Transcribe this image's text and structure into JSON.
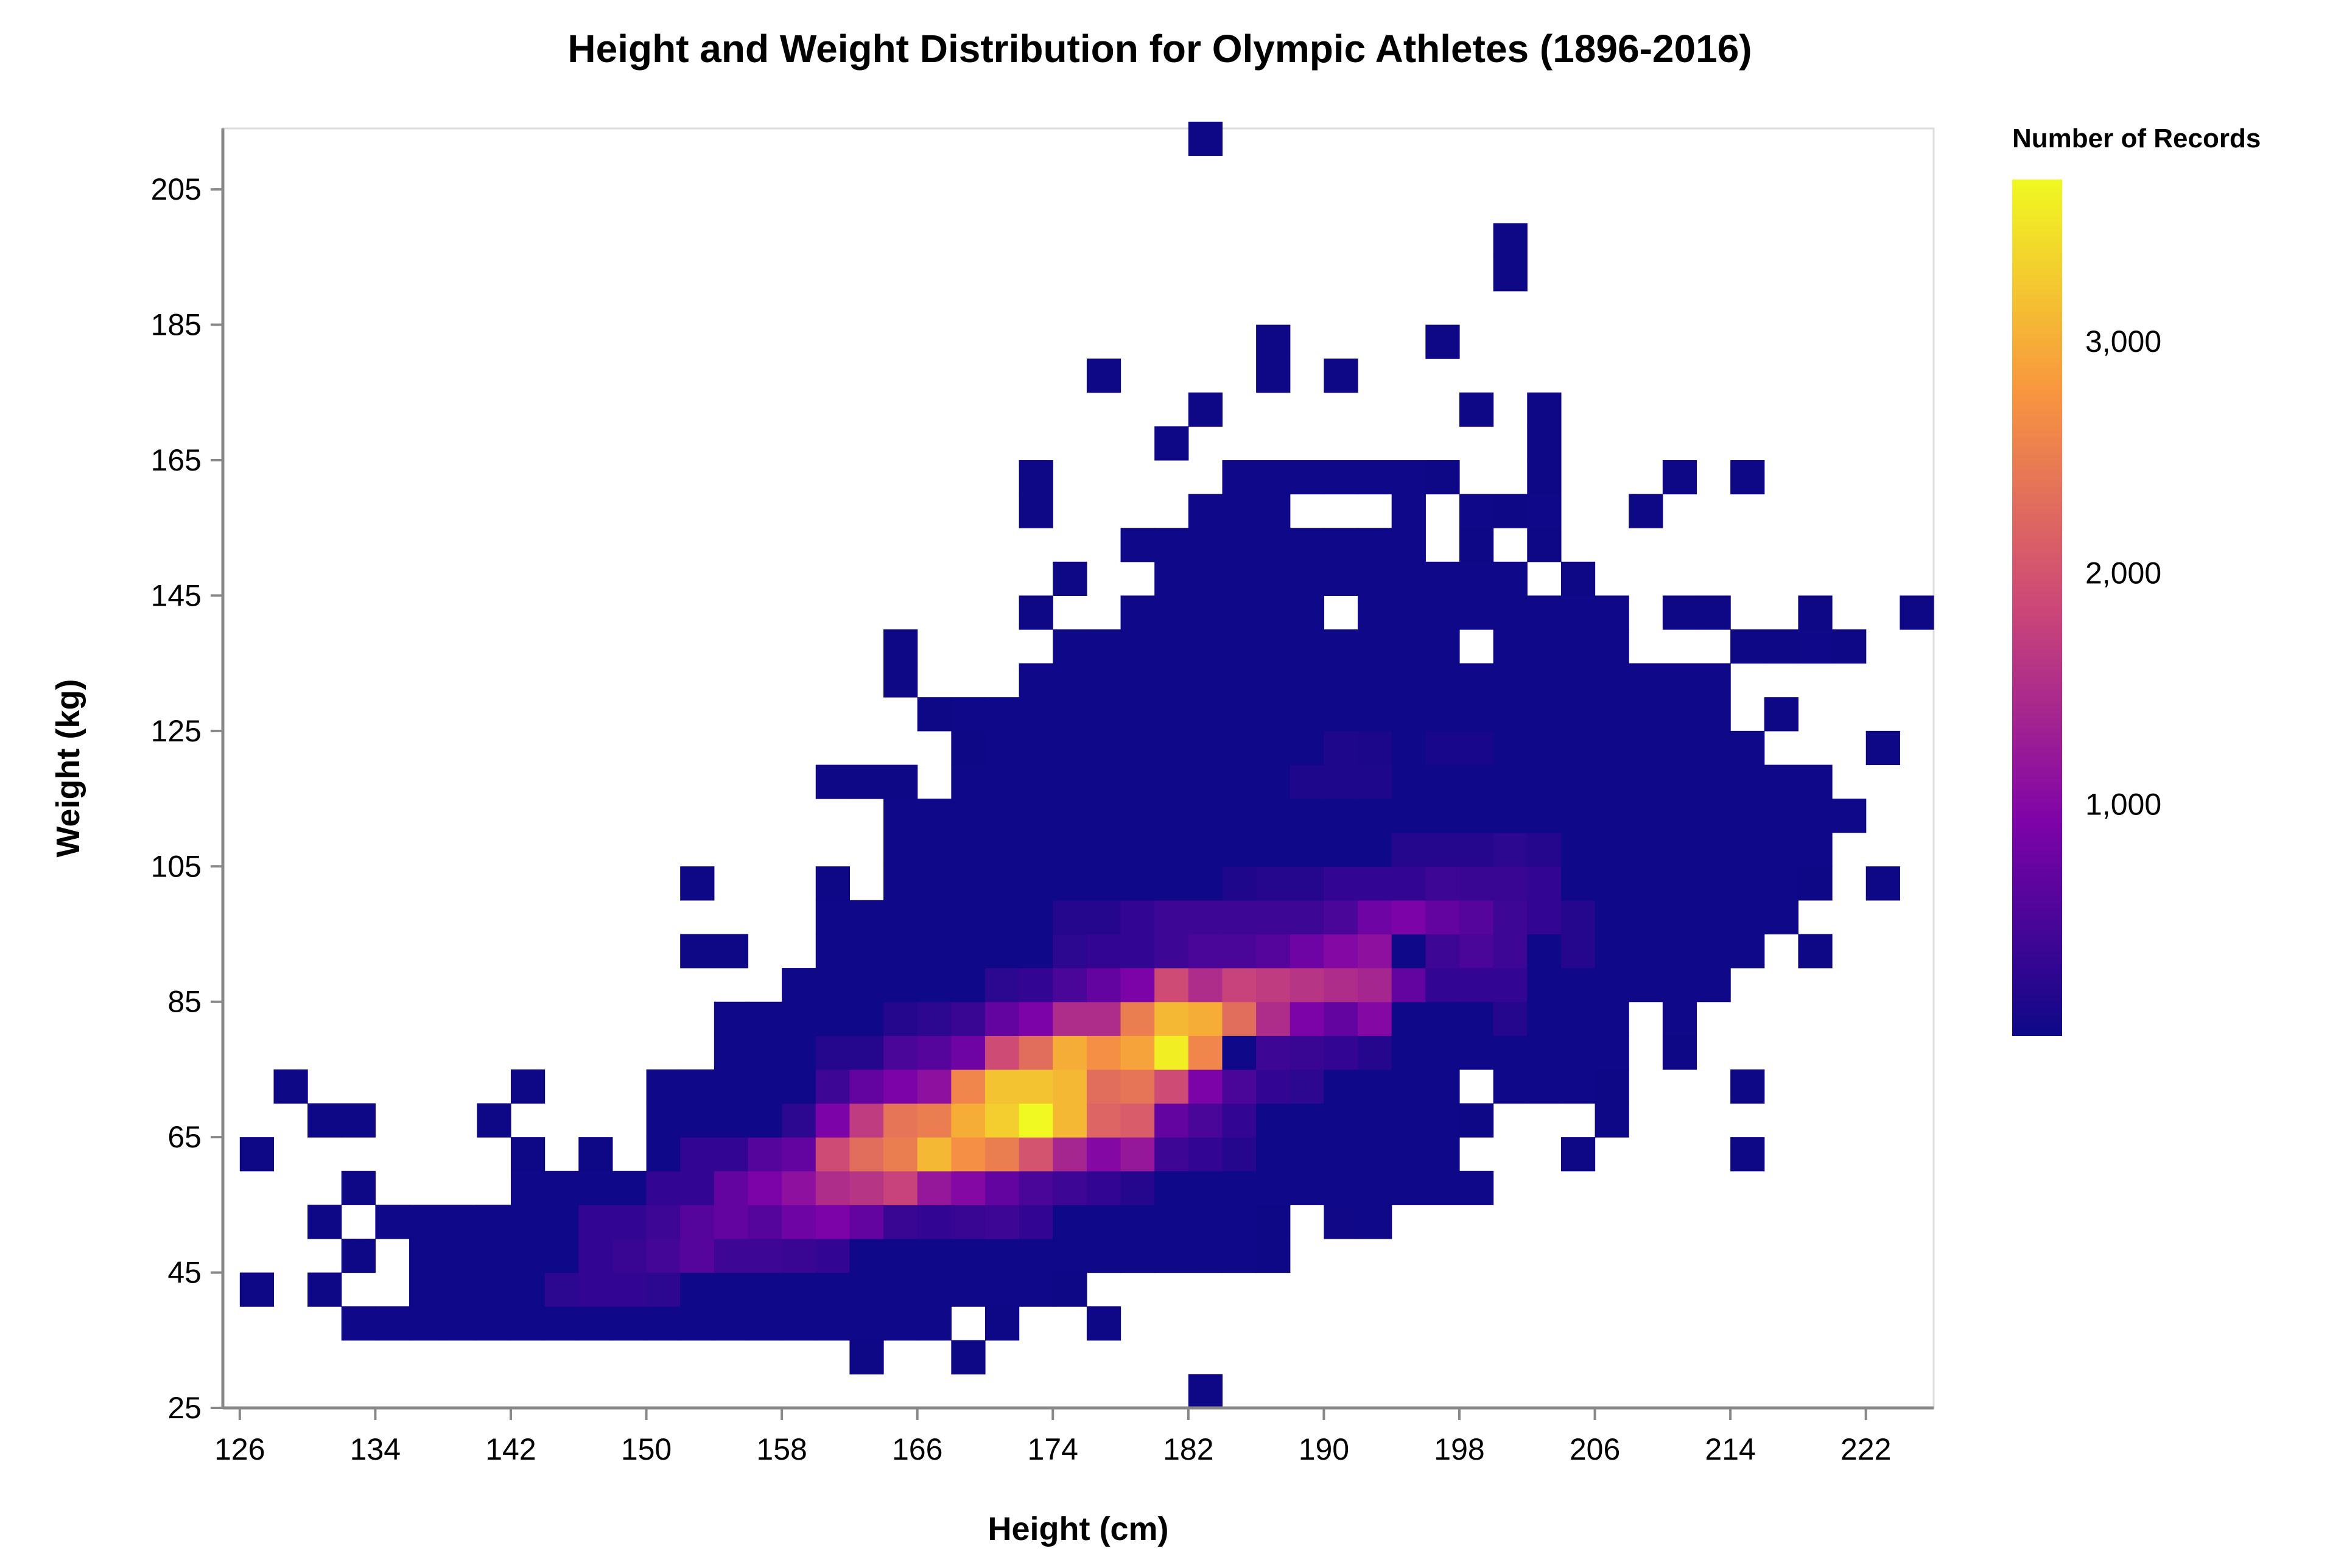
{
  "chart_data": {
    "type": "heatmap",
    "title": "Height and Weight Distribution for Olympic Athletes (1896-2016)",
    "xlabel": "Height (cm)",
    "ylabel": "Weight (kg)",
    "xlim": [
      125,
      226
    ],
    "ylim": [
      25,
      214
    ],
    "xbin": 2,
    "ybin": 5,
    "xticks": [
      126,
      134,
      142,
      150,
      158,
      166,
      174,
      182,
      190,
      198,
      206,
      214,
      222
    ],
    "xtick_labels": [
      "126",
      "134",
      "142",
      "150",
      "158",
      "166",
      "174",
      "182",
      "190",
      "198",
      "206",
      "214",
      "222"
    ],
    "yticks": [
      25,
      45,
      65,
      85,
      105,
      125,
      145,
      165,
      185,
      205
    ],
    "ytick_labels": [
      "25",
      "45",
      "65",
      "85",
      "105",
      "125",
      "145",
      "165",
      "185",
      "205"
    ],
    "legend": {
      "title": "Number of Records",
      "min": 0,
      "max": 3700,
      "ticks": [
        1000,
        2000,
        3000
      ],
      "tick_labels": [
        "1,000",
        "2,000",
        "3,000"
      ],
      "placement": "right",
      "colors": [
        "#0d0887",
        "#7e03a8",
        "#cc4778",
        "#f89540",
        "#f0f921"
      ]
    },
    "cells": [
      [
        182,
        210,
        5
      ],
      [
        200,
        195,
        5
      ],
      [
        200,
        190,
        5
      ],
      [
        196,
        180,
        5
      ],
      [
        186,
        180,
        5
      ],
      [
        186,
        175,
        5
      ],
      [
        190,
        175,
        5
      ],
      [
        176,
        175,
        5
      ],
      [
        182,
        170,
        5
      ],
      [
        198,
        170,
        5
      ],
      [
        202,
        170,
        5
      ],
      [
        202,
        165,
        5
      ],
      [
        180,
        165,
        5
      ],
      [
        172,
        160,
        5
      ],
      [
        172,
        155,
        5
      ],
      [
        196,
        160,
        5
      ],
      [
        202,
        160,
        5
      ],
      [
        210,
        160,
        5
      ],
      [
        214,
        160,
        5
      ],
      [
        208,
        155,
        5
      ],
      [
        200,
        155,
        5
      ],
      [
        198,
        150,
        5
      ],
      [
        202,
        150,
        5
      ],
      [
        174,
        145,
        5
      ],
      [
        204,
        145,
        5
      ],
      [
        172,
        140,
        5
      ],
      [
        210,
        140,
        5
      ],
      [
        212,
        140,
        5
      ],
      [
        218,
        140,
        5
      ],
      [
        224,
        140,
        5
      ],
      [
        220,
        135,
        5
      ],
      [
        214,
        135,
        5
      ],
      [
        216,
        135,
        5
      ],
      [
        164,
        135,
        5
      ],
      [
        164,
        130,
        5
      ],
      [
        166,
        125,
        5
      ],
      [
        216,
        125,
        5
      ],
      [
        168,
        120,
        5
      ],
      [
        222,
        120,
        5
      ],
      [
        160,
        115,
        5
      ],
      [
        162,
        115,
        5
      ],
      [
        164,
        115,
        5
      ],
      [
        152,
        100,
        5
      ],
      [
        160,
        100,
        5
      ],
      [
        218,
        100,
        5
      ],
      [
        222,
        100,
        5
      ],
      [
        218,
        90,
        5
      ],
      [
        152,
        90,
        5
      ],
      [
        154,
        90,
        5
      ],
      [
        210,
        75,
        5
      ],
      [
        214,
        70,
        5
      ],
      [
        206,
        70,
        5
      ],
      [
        206,
        65,
        5
      ],
      [
        198,
        65,
        5
      ],
      [
        204,
        60,
        5
      ],
      [
        214,
        60,
        5
      ],
      [
        128,
        70,
        5
      ],
      [
        142,
        70,
        5
      ],
      [
        130,
        65,
        5
      ],
      [
        132,
        65,
        5
      ],
      [
        140,
        65,
        5
      ],
      [
        126,
        60,
        5
      ],
      [
        142,
        60,
        5
      ],
      [
        146,
        60,
        5
      ],
      [
        132,
        55,
        5
      ],
      [
        130,
        50,
        5
      ],
      [
        132,
        45,
        5
      ],
      [
        126,
        40,
        5
      ],
      [
        130,
        40,
        5
      ],
      [
        182,
        25,
        5
      ],
      [
        162,
        30,
        5
      ],
      [
        168,
        30,
        5
      ],
      [
        170,
        35,
        5
      ],
      [
        176,
        35,
        5
      ],
      [
        174,
        40,
        5
      ],
      [
        186,
        45,
        5
      ],
      [
        186,
        50,
        5
      ],
      [
        190,
        50,
        30
      ],
      [
        192,
        50,
        20
      ],
      [
        172,
        65,
        3700
      ],
      [
        170,
        65,
        3300
      ],
      [
        174,
        65,
        3100
      ],
      [
        170,
        70,
        3200
      ],
      [
        172,
        70,
        3200
      ],
      [
        174,
        70,
        3100
      ],
      [
        174,
        75,
        3000
      ],
      [
        176,
        75,
        2700
      ],
      [
        178,
        75,
        2900
      ],
      [
        180,
        75,
        3600
      ],
      [
        182,
        75,
        2600
      ],
      [
        180,
        80,
        3100
      ],
      [
        182,
        80,
        3000
      ],
      [
        178,
        80,
        2500
      ],
      [
        184,
        80,
        2300
      ],
      [
        168,
        60,
        2700
      ],
      [
        168,
        65,
        3000
      ],
      [
        166,
        60,
        3100
      ],
      [
        164,
        60,
        2500
      ],
      [
        166,
        65,
        2500
      ],
      [
        164,
        65,
        2400
      ],
      [
        168,
        70,
        2600
      ],
      [
        170,
        60,
        2500
      ],
      [
        172,
        60,
        2000
      ],
      [
        174,
        60,
        1400
      ],
      [
        176,
        65,
        2200
      ],
      [
        178,
        65,
        2100
      ],
      [
        176,
        70,
        2300
      ],
      [
        178,
        70,
        2400
      ],
      [
        180,
        70,
        1900
      ],
      [
        172,
        75,
        2300
      ],
      [
        170,
        75,
        1900
      ],
      [
        166,
        70,
        1100
      ],
      [
        164,
        70,
        900
      ],
      [
        162,
        65,
        1700
      ],
      [
        162,
        60,
        2300
      ],
      [
        160,
        60,
        1900
      ],
      [
        160,
        55,
        1500
      ],
      [
        162,
        55,
        1600
      ],
      [
        164,
        55,
        1800
      ],
      [
        158,
        55,
        1100
      ],
      [
        180,
        65,
        700
      ],
      [
        182,
        70,
        900
      ],
      [
        176,
        80,
        1500
      ],
      [
        174,
        80,
        1500
      ],
      [
        182,
        85,
        1500
      ],
      [
        180,
        85,
        1900
      ],
      [
        184,
        85,
        1800
      ],
      [
        186,
        85,
        1700
      ],
      [
        188,
        85,
        1600
      ],
      [
        190,
        85,
        1500
      ],
      [
        186,
        80,
        1500
      ],
      [
        188,
        80,
        900
      ],
      [
        190,
        80,
        700
      ],
      [
        192,
        80,
        1000
      ],
      [
        192,
        85,
        1400
      ],
      [
        192,
        90,
        1100
      ],
      [
        190,
        90,
        1000
      ],
      [
        188,
        90,
        800
      ],
      [
        194,
        85,
        700
      ],
      [
        178,
        85,
        900
      ],
      [
        176,
        85,
        700
      ],
      [
        172,
        80,
        900
      ],
      [
        174,
        85,
        500
      ],
      [
        170,
        80,
        700
      ],
      [
        168,
        75,
        800
      ],
      [
        166,
        75,
        600
      ],
      [
        164,
        75,
        500
      ],
      [
        166,
        55,
        1200
      ],
      [
        168,
        55,
        1000
      ],
      [
        170,
        55,
        700
      ],
      [
        172,
        55,
        500
      ],
      [
        176,
        60,
        1000
      ],
      [
        178,
        60,
        1200
      ],
      [
        174,
        55,
        400
      ],
      [
        156,
        55,
        900
      ],
      [
        154,
        55,
        700
      ],
      [
        160,
        50,
        900
      ],
      [
        158,
        50,
        800
      ],
      [
        162,
        50,
        700
      ],
      [
        156,
        50,
        600
      ],
      [
        154,
        50,
        700
      ],
      [
        152,
        50,
        600
      ],
      [
        150,
        50,
        400
      ],
      [
        156,
        60,
        600
      ],
      [
        158,
        60,
        700
      ],
      [
        160,
        65,
        900
      ],
      [
        162,
        70,
        700
      ],
      [
        160,
        70,
        400
      ],
      [
        194,
        95,
        900
      ],
      [
        196,
        95,
        700
      ],
      [
        192,
        95,
        800
      ],
      [
        190,
        95,
        500
      ],
      [
        198,
        95,
        600
      ],
      [
        198,
        90,
        500
      ],
      [
        196,
        90,
        400
      ],
      [
        196,
        85,
        300
      ],
      [
        198,
        85,
        300
      ],
      [
        200,
        85,
        300
      ],
      [
        200,
        90,
        400
      ],
      [
        200,
        95,
        400
      ],
      [
        202,
        95,
        300
      ],
      [
        184,
        95,
        400
      ],
      [
        186,
        95,
        400
      ],
      [
        188,
        95,
        400
      ],
      [
        180,
        95,
        400
      ],
      [
        182,
        95,
        400
      ],
      [
        184,
        90,
        500
      ],
      [
        186,
        90,
        600
      ],
      [
        180,
        90,
        400
      ],
      [
        182,
        90,
        500
      ],
      [
        178,
        90,
        300
      ],
      [
        176,
        90,
        300
      ],
      [
        174,
        90,
        250
      ],
      [
        172,
        85,
        300
      ],
      [
        170,
        85,
        250
      ],
      [
        168,
        80,
        350
      ],
      [
        166,
        80,
        250
      ],
      [
        164,
        80,
        200
      ],
      [
        162,
        75,
        200
      ],
      [
        160,
        75,
        200
      ],
      [
        176,
        55,
        300
      ],
      [
        178,
        55,
        200
      ],
      [
        180,
        60,
        400
      ],
      [
        182,
        65,
        500
      ],
      [
        184,
        65,
        300
      ],
      [
        184,
        70,
        500
      ],
      [
        186,
        70,
        300
      ],
      [
        188,
        70,
        250
      ],
      [
        182,
        60,
        300
      ],
      [
        184,
        60,
        200
      ],
      [
        186,
        75,
        400
      ],
      [
        188,
        75,
        350
      ],
      [
        190,
        75,
        300
      ],
      [
        192,
        75,
        200
      ],
      [
        152,
        45,
        600
      ],
      [
        150,
        45,
        450
      ],
      [
        148,
        45,
        350
      ],
      [
        146,
        45,
        300
      ],
      [
        154,
        45,
        400
      ],
      [
        156,
        45,
        400
      ],
      [
        158,
        45,
        350
      ],
      [
        160,
        45,
        300
      ],
      [
        148,
        40,
        300
      ],
      [
        146,
        40,
        300
      ],
      [
        144,
        40,
        250
      ],
      [
        150,
        40,
        250
      ],
      [
        148,
        50,
        300
      ],
      [
        146,
        50,
        300
      ],
      [
        150,
        55,
        300
      ],
      [
        152,
        55,
        300
      ],
      [
        152,
        60,
        300
      ],
      [
        154,
        60,
        300
      ],
      [
        158,
        65,
        250
      ],
      [
        166,
        50,
        300
      ],
      [
        168,
        50,
        350
      ],
      [
        164,
        50,
        350
      ],
      [
        170,
        50,
        400
      ],
      [
        172,
        50,
        300
      ],
      [
        194,
        100,
        300
      ],
      [
        196,
        100,
        400
      ],
      [
        198,
        100,
        350
      ],
      [
        200,
        100,
        350
      ],
      [
        202,
        100,
        300
      ],
      [
        190,
        100,
        300
      ],
      [
        192,
        100,
        300
      ],
      [
        194,
        105,
        200
      ],
      [
        196,
        105,
        200
      ],
      [
        198,
        105,
        200
      ],
      [
        200,
        105,
        250
      ],
      [
        202,
        105,
        200
      ],
      [
        186,
        100,
        200
      ],
      [
        188,
        100,
        200
      ],
      [
        184,
        100,
        150
      ],
      [
        174,
        95,
        200
      ],
      [
        176,
        95,
        200
      ],
      [
        178,
        95,
        300
      ],
      [
        204,
        90,
        200
      ],
      [
        204,
        95,
        200
      ],
      [
        200,
        80,
        200
      ],
      [
        188,
        115,
        150
      ],
      [
        190,
        115,
        150
      ],
      [
        192,
        115,
        150
      ],
      [
        190,
        120,
        150
      ],
      [
        192,
        120,
        120
      ],
      [
        196,
        120,
        100
      ],
      [
        198,
        120,
        100
      ]
    ],
    "region_rows": [
      [
        35,
        132,
        150
      ],
      [
        35,
        152,
        166
      ],
      [
        40,
        136,
        170
      ],
      [
        40,
        172,
        172
      ],
      [
        45,
        136,
        176
      ],
      [
        45,
        178,
        184
      ],
      [
        50,
        130,
        130
      ],
      [
        50,
        134,
        184
      ],
      [
        50,
        186,
        186
      ],
      [
        50,
        190,
        192
      ],
      [
        55,
        132,
        132
      ],
      [
        55,
        142,
        194
      ],
      [
        55,
        196,
        198
      ],
      [
        60,
        142,
        142
      ],
      [
        60,
        150,
        196
      ],
      [
        65,
        150,
        196
      ],
      [
        70,
        150,
        196
      ],
      [
        70,
        200,
        204
      ],
      [
        70,
        206,
        206
      ],
      [
        75,
        154,
        194
      ],
      [
        75,
        196,
        206
      ],
      [
        80,
        154,
        206
      ],
      [
        80,
        210,
        210
      ],
      [
        85,
        158,
        212
      ],
      [
        90,
        160,
        214
      ],
      [
        95,
        160,
        216
      ],
      [
        100,
        164,
        218
      ],
      [
        105,
        164,
        218
      ],
      [
        110,
        164,
        220
      ],
      [
        115,
        168,
        218
      ],
      [
        120,
        168,
        214
      ],
      [
        125,
        168,
        212
      ],
      [
        125,
        216,
        216
      ],
      [
        130,
        172,
        212
      ],
      [
        135,
        174,
        196
      ],
      [
        135,
        200,
        206
      ],
      [
        135,
        214,
        218
      ],
      [
        140,
        178,
        188
      ],
      [
        140,
        192,
        206
      ],
      [
        145,
        180,
        200
      ],
      [
        145,
        204,
        204
      ],
      [
        150,
        178,
        194
      ],
      [
        150,
        198,
        198
      ],
      [
        155,
        182,
        186
      ],
      [
        155,
        194,
        194
      ],
      [
        155,
        198,
        202
      ],
      [
        160,
        184,
        194
      ]
    ]
  }
}
